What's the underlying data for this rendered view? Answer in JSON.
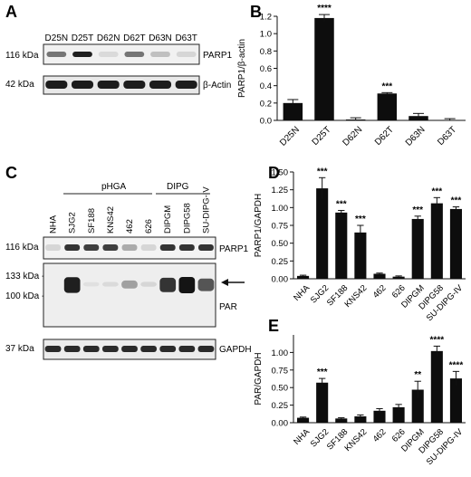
{
  "panels": {
    "A": {
      "letter": "A",
      "lanes": [
        "D25N",
        "D25T",
        "D62N",
        "D62T",
        "D63N",
        "D63T"
      ],
      "markers": [
        "116 kDa",
        "42 kDa"
      ],
      "bands": [
        "PARP1",
        "β-Actin"
      ],
      "parp1_intensity": [
        0.55,
        0.95,
        0.08,
        0.55,
        0.2,
        0.1
      ]
    },
    "B": {
      "letter": "B"
    },
    "C": {
      "letter": "C",
      "group_labels": [
        "pHGA",
        "DIPG"
      ],
      "lanes": [
        "NHA",
        "SJG2",
        "SF188",
        "KNS42",
        "462",
        "626",
        "DIPGM",
        "DIPG58",
        "SU-DIPG-IV"
      ],
      "markers": [
        "116 kDa",
        "133 kDa -",
        "100 kDa -",
        "37 kDa"
      ],
      "bands": [
        "PARP1",
        "PAR",
        "GAPDH"
      ],
      "parp1_intensity": [
        0.1,
        0.85,
        0.8,
        0.8,
        0.3,
        0.1,
        0.85,
        0.85,
        0.85
      ],
      "par_intensity": [
        0.02,
        0.95,
        0.05,
        0.08,
        0.35,
        0.1,
        0.85,
        1.0,
        0.7
      ]
    },
    "D": {
      "letter": "D"
    },
    "E": {
      "letter": "E"
    }
  },
  "chart_data": [
    {
      "type": "bar",
      "panel": "B",
      "categories": [
        "D25N",
        "D25T",
        "D62N",
        "D62T",
        "D63N",
        "D63T"
      ],
      "values": [
        0.2,
        1.18,
        0.01,
        0.31,
        0.05,
        0.0
      ],
      "errors": [
        0.04,
        0.04,
        0.02,
        0.01,
        0.03,
        0.02
      ],
      "annotations": [
        "",
        "****",
        "",
        "***",
        "",
        ""
      ],
      "ylabel": "PARP1/β-actin",
      "ylim": [
        0,
        1.2
      ],
      "yticks": [
        "0.0",
        "0.2",
        "0.4",
        "0.6",
        "0.8",
        "1.0",
        "1.2"
      ]
    },
    {
      "type": "bar",
      "panel": "D",
      "categories": [
        "NHA",
        "SJG2",
        "SF188",
        "KNS42",
        "462",
        "626",
        "DIPGM",
        "DIPG58",
        "SU-DIPG-IV"
      ],
      "values": [
        0.04,
        1.27,
        0.93,
        0.65,
        0.07,
        0.03,
        0.84,
        1.06,
        0.98
      ],
      "errors": [
        0.01,
        0.15,
        0.03,
        0.1,
        0.01,
        0.01,
        0.04,
        0.08,
        0.03
      ],
      "annotations": [
        "",
        "***",
        "***",
        "***",
        "",
        "",
        "***",
        "***",
        "***"
      ],
      "ylabel": "PARP1/GAPDH",
      "ylim": [
        0,
        1.5
      ],
      "yticks": [
        "0.00",
        "0.25",
        "0.50",
        "0.75",
        "1.00",
        "1.25",
        "1.50"
      ]
    },
    {
      "type": "bar",
      "panel": "E",
      "categories": [
        "NHA",
        "SJG2",
        "SF188",
        "KNS42",
        "462",
        "626",
        "DIPGM",
        "DIPG58",
        "SU-DIPG-IV"
      ],
      "values": [
        0.07,
        0.57,
        0.06,
        0.09,
        0.17,
        0.22,
        0.47,
        1.02,
        0.63
      ],
      "errors": [
        0.01,
        0.06,
        0.01,
        0.02,
        0.03,
        0.04,
        0.12,
        0.07,
        0.1
      ],
      "annotations": [
        "",
        "***",
        "",
        "",
        "",
        "",
        "**",
        "****",
        "****"
      ],
      "ylabel": "PAR/GAPDH",
      "ylim": [
        0,
        1.25
      ],
      "yticks": [
        "0.00",
        "0.25",
        "0.50",
        "0.75",
        "1.00"
      ]
    }
  ]
}
